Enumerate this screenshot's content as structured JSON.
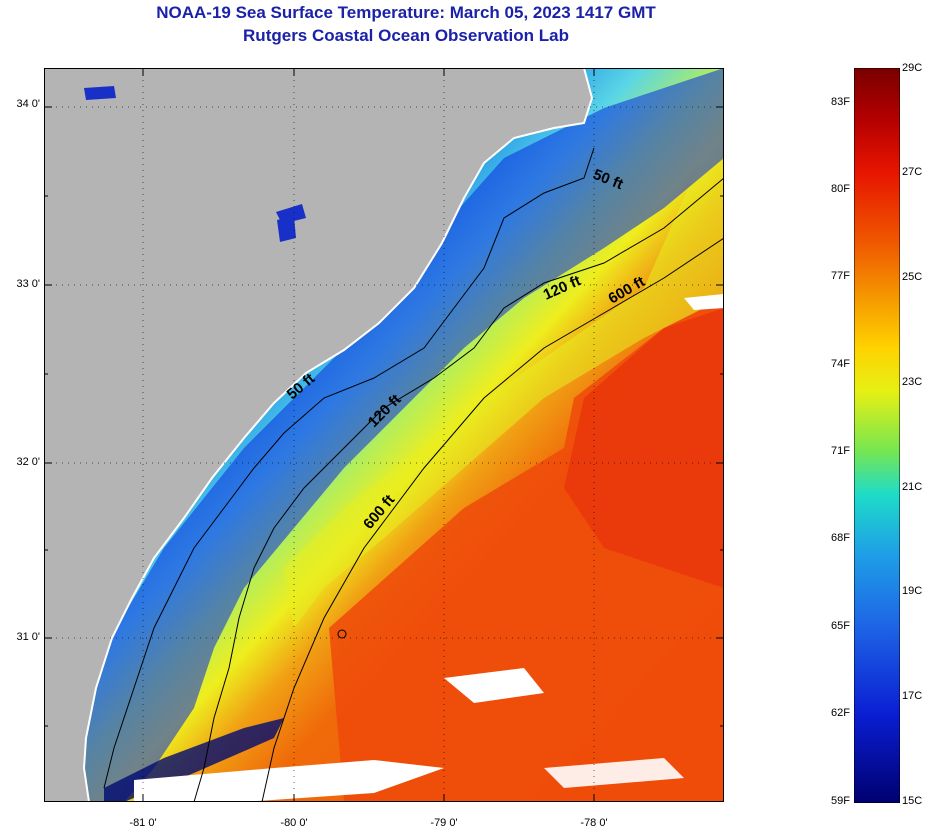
{
  "title": "NOAA-19 Sea Surface Temperature:  March 05, 2023 1417 GMT",
  "subtitle": "Rutgers Coastal Ocean Observation Lab",
  "latitude_labels": [
    "34 0'",
    "33 0'",
    "32 0'",
    "31 0'"
  ],
  "longitude_labels": [
    "-81 0'",
    "-80 0'",
    "-79 0'",
    "-78 0'"
  ],
  "isobath_labels": {
    "north_50": "50 ft",
    "north_120": "120 ft",
    "north_600": "600 ft",
    "mid_50": "50 ft",
    "mid_120": "120 ft",
    "south_600": "600 ft"
  },
  "colorbar": {
    "fahrenheit": [
      "83F",
      "80F",
      "77F",
      "74F",
      "71F",
      "68F",
      "65F",
      "62F",
      "59F"
    ],
    "celsius": [
      "29C",
      "27C",
      "25C",
      "23C",
      "21C",
      "19C",
      "17C",
      "15C"
    ]
  },
  "colors": {
    "title": "#1b22a8",
    "land": "#b4b4b4",
    "cold": "#0a14c8",
    "cool": "#1ea0e6",
    "mid": "#e6ef14",
    "warm": "#f0640a",
    "cloud": "#ffffff"
  }
}
